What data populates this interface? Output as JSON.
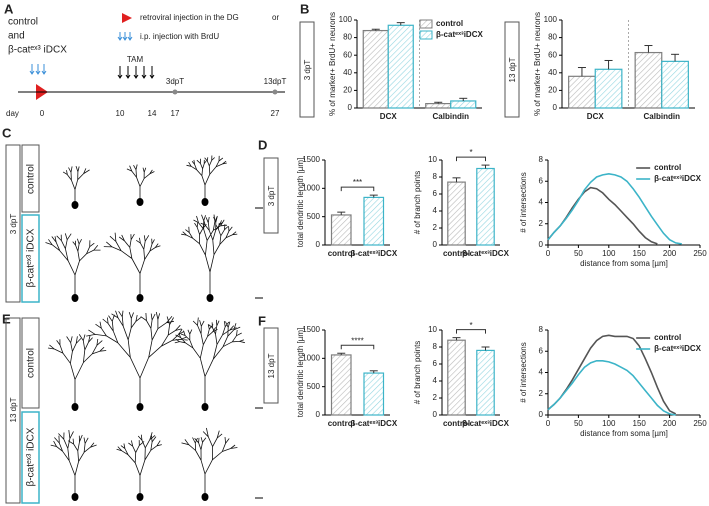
{
  "panel_labels": [
    "A",
    "B",
    "C",
    "D",
    "E",
    "F"
  ],
  "panel_a": {
    "group": [
      "control",
      "and",
      "β-catᵉˣ³ iDCX"
    ],
    "legend": [
      "retroviral injection in the DG",
      "or",
      "i.p. injection with BrdU"
    ],
    "tam": "TAM",
    "day": "day",
    "days": [
      "0",
      "10",
      "14",
      "17",
      "27"
    ],
    "timepoints": [
      "3dpT",
      "13dpT"
    ]
  },
  "timepoint_boxes": [
    "3 dpT",
    "13 dpT"
  ],
  "condition_boxes": [
    "control",
    "β-catᵉˣ³ iDCX"
  ],
  "chart_data": [
    {
      "type": "bar",
      "ylabel": "% of marker+ BrdU+ neurons",
      "categories": [
        "DCX",
        "Calbindin"
      ],
      "series": [
        {
          "name": "control",
          "color": "#7f7f7f",
          "values": [
            88,
            5
          ],
          "errors": [
            1.5,
            1.5
          ]
        },
        {
          "name": "β-catᵉˣ³iDCX",
          "color": "#3cb4c8",
          "values": [
            94,
            8
          ],
          "errors": [
            3,
            3
          ]
        }
      ],
      "ylim": [
        0,
        100
      ],
      "yticks": [
        0,
        20,
        40,
        60,
        80,
        100
      ],
      "legend": true
    },
    {
      "type": "bar",
      "ylabel": "% of marker+ BrdU+ neurons",
      "categories": [
        "DCX",
        "Calbindin"
      ],
      "series": [
        {
          "color": "#7f7f7f",
          "values": [
            36,
            63
          ],
          "errors": [
            10,
            8
          ]
        },
        {
          "color": "#3cb4c8",
          "values": [
            44,
            53
          ],
          "errors": [
            10,
            8
          ]
        }
      ],
      "ylim": [
        0,
        100
      ],
      "yticks": [
        0,
        20,
        40,
        60,
        80,
        100
      ],
      "legend": false
    },
    {
      "type": "bar",
      "ylabel": "total dendritic length [µm]",
      "categories": [
        "control",
        "β-catᵉˣ³iDCX"
      ],
      "values": [
        530,
        840
      ],
      "errors": [
        50,
        40
      ],
      "colors": [
        "#7f7f7f",
        "#3cb4c8"
      ],
      "ylim": [
        0,
        1500
      ],
      "yticks": [
        0,
        500,
        1000,
        1500
      ],
      "significance": "***"
    },
    {
      "type": "bar",
      "ylabel": "# of branch points",
      "categories": [
        "control",
        "β-catᵉˣ³iDCX"
      ],
      "values": [
        7.4,
        9.0
      ],
      "errors": [
        0.5,
        0.4
      ],
      "colors": [
        "#7f7f7f",
        "#3cb4c8"
      ],
      "ylim": [
        0,
        10
      ],
      "yticks": [
        0,
        2,
        4,
        6,
        8,
        10
      ],
      "significance": "*"
    },
    {
      "type": "line",
      "ylabel": "# of intersections",
      "xlabel": "distance from soma [µm]",
      "x": [
        0,
        10,
        20,
        30,
        40,
        50,
        60,
        70,
        80,
        90,
        100,
        110,
        120,
        130,
        140,
        150,
        160,
        170,
        180,
        190,
        200,
        210,
        220
      ],
      "series": [
        {
          "name": "control",
          "color": "#555555",
          "values": [
            0.5,
            1.2,
            1.8,
            2.6,
            3.5,
            4.3,
            5.0,
            5.4,
            5.3,
            4.9,
            4.3,
            3.8,
            3.2,
            2.6,
            2.0,
            1.3,
            0.7,
            0.3,
            0.1,
            null,
            null,
            null,
            null
          ]
        },
        {
          "name": "β-catᵉˣ³iDCX",
          "color": "#3cb4c8",
          "values": [
            0.5,
            1.2,
            1.8,
            2.5,
            3.3,
            4.2,
            5.2,
            5.9,
            6.4,
            6.6,
            6.7,
            6.6,
            6.4,
            6.0,
            5.3,
            4.5,
            3.6,
            2.7,
            1.9,
            1.1,
            0.5,
            0.2,
            0.1
          ]
        }
      ],
      "xlim": [
        0,
        250
      ],
      "xticks": [
        0,
        50,
        100,
        150,
        200,
        250
      ],
      "ylim": [
        0,
        8
      ],
      "yticks": [
        0,
        2,
        4,
        6,
        8
      ],
      "legend": true
    },
    {
      "type": "bar",
      "ylabel": "total dendritic length [µm]",
      "categories": [
        "control",
        "β-catᵉˣ³iDCX"
      ],
      "values": [
        1060,
        740
      ],
      "errors": [
        30,
        40
      ],
      "colors": [
        "#7f7f7f",
        "#3cb4c8"
      ],
      "ylim": [
        0,
        1500
      ],
      "yticks": [
        0,
        500,
        1000,
        1500
      ],
      "significance": "****"
    },
    {
      "type": "bar",
      "ylabel": "# of branch points",
      "categories": [
        "control",
        "β-catᵉˣ³iDCX"
      ],
      "values": [
        8.8,
        7.6
      ],
      "errors": [
        0.3,
        0.4
      ],
      "colors": [
        "#7f7f7f",
        "#3cb4c8"
      ],
      "ylim": [
        0,
        10
      ],
      "yticks": [
        0,
        2,
        4,
        6,
        8,
        10
      ],
      "significance": "*"
    },
    {
      "type": "line",
      "ylabel": "# of intersections",
      "xlabel": "distance from soma [µm]",
      "x": [
        0,
        10,
        20,
        30,
        40,
        50,
        60,
        70,
        80,
        90,
        100,
        110,
        120,
        130,
        140,
        150,
        160,
        170,
        180,
        190,
        200,
        210
      ],
      "series": [
        {
          "name": "control",
          "color": "#555555",
          "values": [
            0.5,
            1.0,
            1.6,
            2.4,
            3.3,
            4.3,
            5.3,
            6.3,
            7.0,
            7.4,
            7.5,
            7.4,
            7.4,
            7.4,
            7.2,
            6.5,
            5.3,
            4.0,
            2.6,
            1.3,
            0.4,
            0.1
          ]
        },
        {
          "name": "β-catᵉˣ³iDCX",
          "color": "#3cb4c8",
          "values": [
            0.5,
            1.0,
            1.6,
            2.3,
            3.0,
            3.8,
            4.5,
            4.9,
            5.1,
            5.1,
            5.0,
            4.8,
            4.5,
            4.2,
            3.7,
            3.0,
            2.3,
            1.6,
            0.9,
            0.4,
            0.1,
            0.0
          ]
        }
      ],
      "xlim": [
        0,
        250
      ],
      "xticks": [
        0,
        50,
        100,
        150,
        200,
        250
      ],
      "ylim": [
        0,
        8
      ],
      "yticks": [
        0,
        2,
        4,
        6,
        8
      ],
      "legend": true
    }
  ]
}
